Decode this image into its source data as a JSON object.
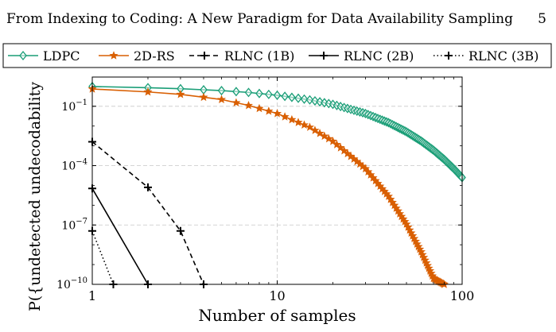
{
  "header": {
    "running_title": "From Indexing to Coding: A New Paradigm for Data Availability Sampling",
    "page_number": "5"
  },
  "chart_data": {
    "type": "line",
    "title": "",
    "xlabel": "Number of samples",
    "ylabel": "P({undetected undecodability",
    "xscale": "log",
    "yscale": "log",
    "xlim": [
      1,
      100
    ],
    "ylim": [
      1e-10,
      3
    ],
    "xticks": [
      {
        "value": 1,
        "label": "1"
      },
      {
        "value": 10,
        "label": "10"
      },
      {
        "value": 100,
        "label": "100"
      }
    ],
    "yticks": [
      {
        "exp": -1,
        "base": "10",
        "sup": "−1"
      },
      {
        "exp": -4,
        "base": "10",
        "sup": "−4"
      },
      {
        "exp": -7,
        "base": "10",
        "sup": "−7"
      },
      {
        "exp": -10,
        "base": "10",
        "sup": "−10"
      }
    ],
    "grid": true,
    "legend_position": "top",
    "series": [
      {
        "name": "LDPC",
        "color": "#1a9e77",
        "dash": "solid",
        "marker": "diamond",
        "dense": true,
        "points": [
          [
            1,
            1.0
          ],
          [
            2,
            0.87
          ],
          [
            3,
            0.77
          ],
          [
            5,
            0.62
          ],
          [
            7,
            0.5
          ],
          [
            10,
            0.36
          ],
          [
            15,
            0.21
          ],
          [
            20,
            0.125
          ],
          [
            30,
            0.043
          ],
          [
            40,
            0.0148
          ],
          [
            50,
            0.0051
          ],
          [
            60,
            0.00175
          ],
          [
            70,
            0.0006
          ],
          [
            80,
            0.000206
          ],
          [
            90,
            7.1e-05
          ],
          [
            100,
            2.5e-05
          ]
        ]
      },
      {
        "name": "2D-RS",
        "color": "#d95f02",
        "dash": "solid",
        "marker": "star",
        "dense": true,
        "points": [
          [
            1,
            0.75
          ],
          [
            2,
            0.53
          ],
          [
            3,
            0.4
          ],
          [
            5,
            0.22
          ],
          [
            7,
            0.11
          ],
          [
            10,
            0.043
          ],
          [
            15,
            0.0087
          ],
          [
            20,
            0.0017
          ],
          [
            30,
            7e-05
          ],
          [
            40,
            2.8e-06
          ],
          [
            50,
            1.1e-07
          ],
          [
            60,
            4.4e-09
          ],
          [
            70,
            2e-10
          ],
          [
            80,
            1e-10
          ]
        ]
      },
      {
        "name": "RLNC (1B)",
        "color": "#000000",
        "dash": "dashed",
        "marker": "plus",
        "dense": false,
        "points": [
          [
            1,
            0.0016
          ],
          [
            2,
            8e-06
          ],
          [
            3,
            5e-08
          ],
          [
            4,
            1e-10
          ]
        ]
      },
      {
        "name": "RLNC (2B)",
        "color": "#000000",
        "dash": "solid",
        "marker": "plus",
        "dense": false,
        "points": [
          [
            1,
            7e-06
          ],
          [
            2,
            1e-10
          ]
        ]
      },
      {
        "name": "RLNC (3B)",
        "color": "#000000",
        "dash": "dotted",
        "marker": "plus",
        "dense": false,
        "points": [
          [
            1,
            5e-08
          ],
          [
            1.3,
            1e-10
          ]
        ]
      }
    ]
  }
}
